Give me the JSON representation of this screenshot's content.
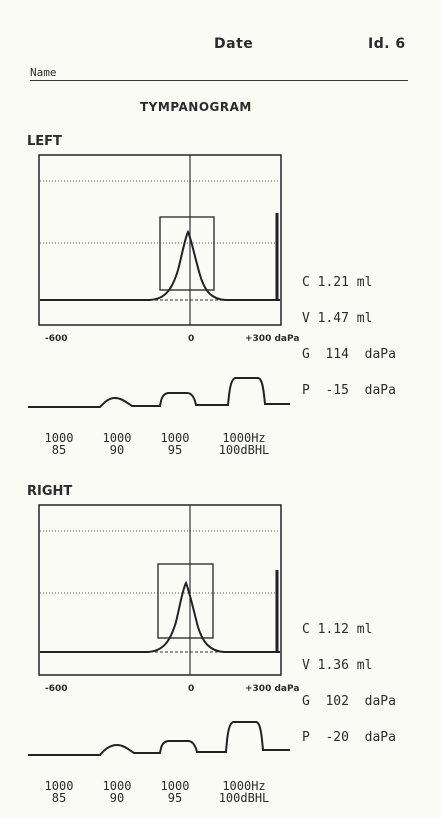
{
  "header": {
    "date_label": "Date",
    "id_label": "Id. 6",
    "name_label": "Name"
  },
  "title": "TYMPANOGRAM",
  "left": {
    "label": "LEFT",
    "readout": [
      {
        "sym": "C",
        "val": "1.21",
        "unit": "ml"
      },
      {
        "sym": "V",
        "val": "1.47",
        "unit": "ml"
      },
      {
        "sym": "G",
        "val": "114",
        "unit": "daPa"
      },
      {
        "sym": "P",
        "val": "-15",
        "unit": "daPa"
      }
    ],
    "axis": {
      "min": "-600",
      "zero": "0",
      "max": "+300 daPa"
    },
    "reflex": [
      {
        "freq": "1000",
        "level": "85"
      },
      {
        "freq": "1000",
        "level": "90"
      },
      {
        "freq": "1000",
        "level": "95"
      },
      {
        "freq": "1000Hz",
        "level": "100dBHL"
      }
    ]
  },
  "right": {
    "label": "RIGHT",
    "readout": [
      {
        "sym": "C",
        "val": "1.12",
        "unit": "ml"
      },
      {
        "sym": "V",
        "val": "1.36",
        "unit": "ml"
      },
      {
        "sym": "G",
        "val": "102",
        "unit": "daPa"
      },
      {
        "sym": "P",
        "val": "-20",
        "unit": "daPa"
      }
    ],
    "axis": {
      "min": "-600",
      "zero": "0",
      "max": "+300 daPa"
    },
    "reflex": [
      {
        "freq": "1000",
        "level": "85"
      },
      {
        "freq": "1000",
        "level": "90"
      },
      {
        "freq": "1000",
        "level": "95"
      },
      {
        "freq": "1000Hz",
        "level": "100dBHL"
      }
    ]
  }
}
